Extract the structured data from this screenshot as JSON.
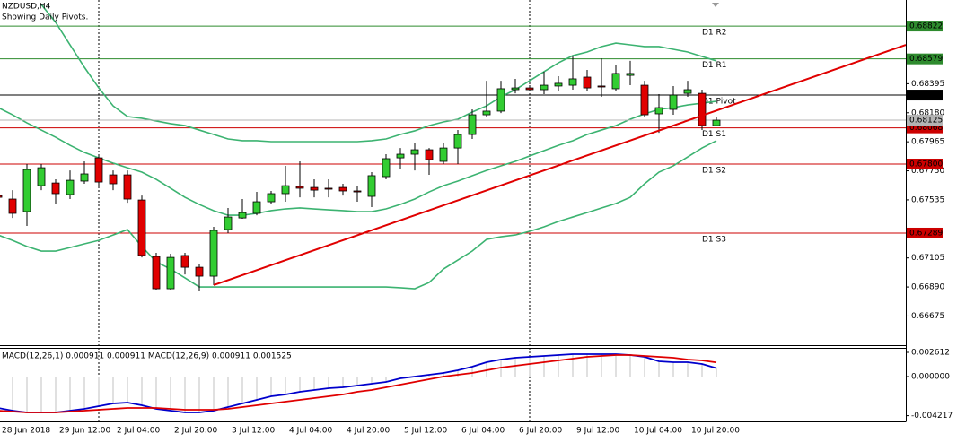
{
  "chart_data": {
    "type": "candlestick",
    "title": "NZDUSD,H4",
    "subtitle": "Showing Daily Pivots.",
    "categories": [
      "28 Jun 2018",
      null,
      null,
      null,
      "29 Jun 12:00",
      null,
      null,
      null,
      "2 Jul 04:00",
      null,
      null,
      null,
      "2 Jul 20:00",
      null,
      null,
      null,
      "3 Jul 12:00",
      null,
      null,
      null,
      "4 Jul 04:00",
      null,
      null,
      null,
      "4 Jul 20:00",
      null,
      null,
      null,
      "5 Jul 12:00",
      null,
      null,
      null,
      "6 Jul 04:00",
      null,
      null,
      null,
      "6 Jul 20:00",
      null,
      null,
      null,
      "9 Jul 12:00",
      null,
      null,
      null,
      "10 Jul 04:00",
      null,
      null,
      null,
      "10 Jul 20:00",
      null,
      null
    ],
    "candles": {
      "open": [
        0.67567,
        0.67541,
        0.67448,
        0.6764,
        0.6766,
        0.67574,
        0.67674,
        0.67846,
        0.6772,
        0.6772,
        0.67534,
        0.67116,
        0.66877,
        0.67123,
        0.67036,
        0.6697,
        0.67315,
        0.67401,
        0.67435,
        0.67521,
        0.67581,
        0.67634,
        0.67627,
        0.67621,
        0.67627,
        0.67601,
        0.67561,
        0.67707,
        0.67846,
        0.67873,
        0.67906,
        0.6782,
        0.67919,
        0.68019,
        0.68165,
        0.68192,
        0.68351,
        0.68364,
        0.68351,
        0.68378,
        0.68384,
        0.68444,
        0.68378,
        0.68358,
        0.68457,
        0.68384,
        0.68172,
        0.68205,
        0.68324,
        0.68324,
        0.68085
      ],
      "high": [
        0.67594,
        0.67607,
        0.678,
        0.678,
        0.67687,
        0.67753,
        0.6782,
        0.67873,
        0.67753,
        0.67753,
        0.67567,
        0.67143,
        0.67136,
        0.67143,
        0.67063,
        0.67335,
        0.67475,
        0.67541,
        0.67594,
        0.67601,
        0.67787,
        0.6782,
        0.67687,
        0.67687,
        0.67654,
        0.6764,
        0.6774,
        0.67873,
        0.67919,
        0.67953,
        0.67919,
        0.67953,
        0.68052,
        0.68205,
        0.68417,
        0.68417,
        0.68431,
        0.68384,
        0.68484,
        0.68451,
        0.68603,
        0.68497,
        0.68583,
        0.68537,
        0.68564,
        0.68417,
        0.68318,
        0.68378,
        0.68417,
        0.68351,
        0.68152
      ],
      "low": [
        0.67528,
        0.67401,
        0.67342,
        0.67607,
        0.67501,
        0.67541,
        0.67654,
        0.67634,
        0.67607,
        0.67514,
        0.67109,
        0.66864,
        0.66864,
        0.66983,
        0.66857,
        0.66904,
        0.67289,
        0.67395,
        0.67421,
        0.67508,
        0.67521,
        0.67554,
        0.67554,
        0.67554,
        0.67567,
        0.67521,
        0.67481,
        0.67687,
        0.67767,
        0.67753,
        0.6772,
        0.678,
        0.678,
        0.67986,
        0.68152,
        0.68178,
        0.68324,
        0.68338,
        0.68318,
        0.68338,
        0.68351,
        0.68338,
        0.68298,
        0.68338,
        0.68384,
        0.68152,
        0.68032,
        0.68165,
        0.68298,
        0.68052,
        0.68085
      ],
      "close": [
        0.67554,
        0.67435,
        0.6776,
        0.67773,
        0.67581,
        0.6768,
        0.67727,
        0.67667,
        0.67654,
        0.67541,
        0.67123,
        0.66877,
        0.67109,
        0.67036,
        0.6697,
        0.67309,
        0.67408,
        0.67441,
        0.67521,
        0.67581,
        0.6764,
        0.67621,
        0.67607,
        0.67614,
        0.67601,
        0.67594,
        0.67714,
        0.6784,
        0.67873,
        0.67906,
        0.67833,
        0.67919,
        0.68019,
        0.68165,
        0.68192,
        0.68358,
        0.68364,
        0.68351,
        0.68384,
        0.68398,
        0.68431,
        0.68364,
        0.68371,
        0.68471,
        0.68471,
        0.68165,
        0.68218,
        0.68311,
        0.68351,
        0.68085,
        0.68125
      ]
    },
    "up_color": "#32cd32",
    "down_color": "#e00000",
    "last_price_color": "#b4b4b4",
    "ylim": [
      0.66459,
      0.69015
    ],
    "yticks": [
      0.68395,
      {
        "value": 0.6818,
        "label": "0.68180"
      },
      0.67965,
      {
        "value": 0.6775,
        "label": "0.67750"
      },
      0.67535,
      0.67105,
      {
        "value": 0.6689,
        "label": "0.66890"
      },
      0.66675
    ],
    "bollinger": {
      "color": "#3cb371",
      "upper": [
        null,
        null,
        null,
        0.68982,
        0.68849,
        0.68683,
        0.68517,
        0.68364,
        0.68231,
        0.68152,
        0.68139,
        0.68119,
        0.68099,
        0.68085,
        0.68052,
        0.68019,
        0.67986,
        0.67973,
        0.67973,
        0.67966,
        0.67966,
        0.67966,
        0.67966,
        0.67966,
        0.67966,
        0.67966,
        0.67973,
        0.67986,
        0.68019,
        0.68046,
        0.68085,
        0.68112,
        0.68132,
        0.68185,
        0.68231,
        0.68298,
        0.68351,
        0.68417,
        0.68484,
        0.6855,
        0.68603,
        0.6863,
        0.6867,
        0.68696,
        0.68683,
        0.6867,
        0.6867,
        0.6865,
        0.6863,
        0.68597,
        0.68564
      ],
      "middle": [
        0.68218,
        0.68165,
        0.68105,
        0.68052,
        0.67999,
        0.67939,
        0.67886,
        0.67846,
        0.67807,
        0.67773,
        0.6774,
        0.67687,
        0.67621,
        0.67554,
        0.67501,
        0.67455,
        0.67421,
        0.67421,
        0.67435,
        0.67455,
        0.67468,
        0.67475,
        0.67468,
        0.67461,
        0.67455,
        0.67448,
        0.67448,
        0.67468,
        0.67501,
        0.67541,
        0.67594,
        0.6764,
        0.67674,
        0.67714,
        0.67753,
        0.67787,
        0.6782,
        0.6786,
        0.679,
        0.67939,
        0.67973,
        0.68019,
        0.68052,
        0.68085,
        0.68132,
        0.68172,
        0.68205,
        0.68218,
        0.68238,
        0.68251,
        0.68265
      ],
      "lower": [
        0.67275,
        0.67235,
        0.6719,
        0.67156,
        0.67156,
        0.67182,
        0.67209,
        0.67235,
        0.67275,
        0.67315,
        0.6719,
        0.67076,
        0.67023,
        0.66957,
        0.6689,
        0.6689,
        0.6689,
        0.6689,
        0.6689,
        0.6689,
        0.6689,
        0.6689,
        0.6689,
        0.6689,
        0.6689,
        0.6689,
        0.6689,
        0.6689,
        0.66884,
        0.66877,
        0.66923,
        0.67023,
        0.67089,
        0.67156,
        0.67242,
        0.67262,
        0.67275,
        0.67302,
        0.67335,
        0.67375,
        0.67408,
        0.67441,
        0.67475,
        0.67508,
        0.67554,
        0.67654,
        0.6774,
        0.67787,
        0.67853,
        0.67919,
        0.67973
      ]
    },
    "trendline": {
      "color": "#e00000",
      "values": [
        0.66904,
        0.68683
      ]
    },
    "pivots": [
      {
        "name": "D1 R2",
        "value": 0.68822,
        "color": "#2e8b2e"
      },
      {
        "name": "D1 R1",
        "value": 0.68579,
        "color": "#2e8b2e"
      },
      {
        "name": "D1 Pivot",
        "value": 0.68311,
        "color": "#000000"
      },
      {
        "name": "D1 S1",
        "value": 0.68068,
        "color": "#cc0000"
      },
      {
        "name": "D1 S2",
        "value": 0.678,
        "value_label": "0.67800",
        "color": "#cc0000"
      },
      {
        "name": "D1 S3",
        "value": 0.67289,
        "color": "#cc0000"
      }
    ],
    "macd": {
      "type": "line",
      "title": "MACD(12,26,1) 0.000911 0.000911 MACD(12,26,9) 0.000911 0.001525",
      "ylim": [
        -0.004836,
        0.003095
      ],
      "yticks": [
        0.002612,
        {
          "value": 0,
          "label": "0.000000"
        },
        -0.004217
      ],
      "histogram_color": "#c0c0c0",
      "series": [
        {
          "color": "#0000cc",
          "values": [
            -0.003385,
            -0.003675,
            -0.003868,
            -0.003868,
            -0.003868,
            -0.003675,
            -0.003481,
            -0.003191,
            -0.002901,
            -0.002804,
            -0.003094,
            -0.003481,
            -0.003675,
            -0.003868,
            -0.003868,
            -0.003675,
            -0.003288,
            -0.002901,
            -0.002514,
            -0.002127,
            -0.001934,
            -0.001644,
            -0.001451,
            -0.001257,
            -0.00116,
            -0.000967,
            -0.000774,
            -0.00058,
            -0.000193,
            0,
            0.000193,
            0.000387,
            0.000677,
            0.001064,
            0.001547,
            0.001837,
            0.002031,
            0.002127,
            0.002224,
            0.002321,
            0.002418,
            0.002418,
            0.002418,
            0.002418,
            0.002321,
            0.002127,
            0.001644,
            0.001547,
            0.001547,
            0.001354,
            0.000911
          ]
        },
        {
          "color": "#e00000",
          "values": [
            -0.003675,
            -0.003771,
            -0.003868,
            -0.003868,
            -0.003868,
            -0.003771,
            -0.003675,
            -0.003578,
            -0.003481,
            -0.003385,
            -0.003385,
            -0.003385,
            -0.003481,
            -0.003578,
            -0.003578,
            -0.003578,
            -0.003481,
            -0.003288,
            -0.003094,
            -0.002901,
            -0.002708,
            -0.002514,
            -0.002321,
            -0.002127,
            -0.001934,
            -0.001644,
            -0.001451,
            -0.00116,
            -0.00087,
            -0.00058,
            -0.00029,
            0,
            0.000193,
            0.000387,
            0.000677,
            0.000967,
            0.00116,
            0.001354,
            0.001547,
            0.001741,
            0.001934,
            0.002127,
            0.002224,
            0.002321,
            0.002321,
            0.002224,
            0.002127,
            0.002031,
            0.001837,
            0.001741,
            0.001525
          ]
        }
      ]
    }
  }
}
